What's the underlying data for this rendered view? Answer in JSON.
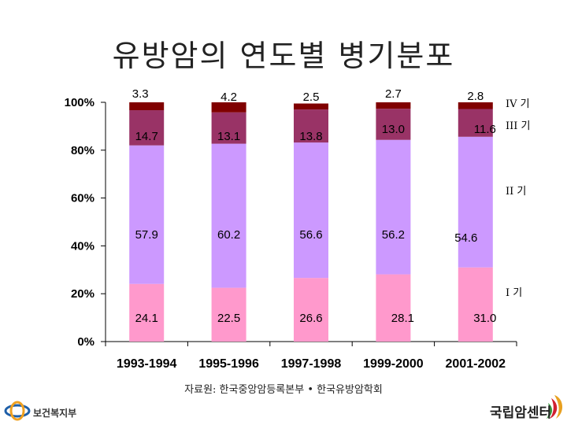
{
  "title": "유방암의 연도별 병기분포",
  "source": "자료원: 한국중앙암등록본부 • 한국유방암학회",
  "logos": {
    "left_label": "보건복지부",
    "right_label": "국립암센터"
  },
  "colors": {
    "stage1": "#ff99cc",
    "stage2": "#cc99ff",
    "stage3": "#993366",
    "stage4": "#800000",
    "axis": "#000000"
  },
  "chart_data": {
    "type": "bar",
    "stacked": true,
    "categories": [
      "1993-1994",
      "1995-1996",
      "1997-1998",
      "1999-2000",
      "2001-2002"
    ],
    "series": [
      {
        "name": "I 기",
        "values": [
          24.1,
          22.5,
          26.6,
          28.1,
          31.0
        ],
        "labels": [
          "24.1",
          "22.5",
          "26.6",
          "28.1",
          "31.0"
        ],
        "color": "#ff99cc"
      },
      {
        "name": "II 기",
        "values": [
          57.9,
          60.2,
          56.6,
          56.2,
          54.6
        ],
        "labels": [
          "57.9",
          "60.2",
          "56.6",
          "56.2",
          "54.6"
        ],
        "color": "#cc99ff"
      },
      {
        "name": "III 기",
        "values": [
          14.7,
          13.1,
          13.8,
          13.0,
          11.6
        ],
        "labels": [
          "14.7",
          "13.1",
          "13.8",
          "13.0",
          "11.6"
        ],
        "color": "#993366"
      },
      {
        "name": "IV 기",
        "values": [
          3.3,
          4.2,
          2.5,
          2.7,
          2.8
        ],
        "labels": [
          "3.3",
          "4.2",
          "2.5",
          "2.7",
          "2.8"
        ],
        "color": "#800000"
      }
    ],
    "yticks": [
      "0%",
      "20%",
      "40%",
      "60%",
      "80%",
      "100%"
    ],
    "ylim": [
      0,
      100
    ],
    "legend": "right, labels aligned to segments"
  }
}
